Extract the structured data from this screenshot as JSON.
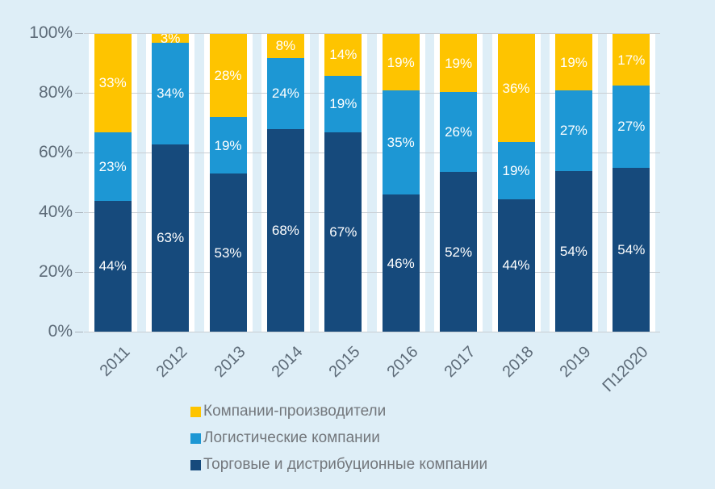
{
  "chart_data": {
    "type": "bar",
    "subtype": "stacked-100",
    "title": "",
    "categories": [
      "2011",
      "2012",
      "2013",
      "2014",
      "2015",
      "2016",
      "2017",
      "2018",
      "2019",
      "П12020"
    ],
    "series": [
      {
        "name": "Торговые и дистрибуционные компании",
        "color": "#164a7c",
        "values": [
          44,
          63,
          53,
          68,
          67,
          46,
          52,
          44,
          54,
          54
        ],
        "labels": [
          "44%",
          "63%",
          "53%",
          "68%",
          "67%",
          "46%",
          "52%",
          "44%",
          "54%",
          "54%"
        ]
      },
      {
        "name": "Логистические компании",
        "color": "#1d97d4",
        "values": [
          23,
          34,
          19,
          24,
          19,
          35,
          26,
          19,
          27,
          27
        ],
        "labels": [
          "23%",
          "34%",
          "19%",
          "24%",
          "19%",
          "35%",
          "26%",
          "19%",
          "27%",
          "27%"
        ]
      },
      {
        "name": "Компании-производители",
        "color": "#fec400",
        "values": [
          33,
          3,
          28,
          8,
          14,
          19,
          19,
          36,
          19,
          17
        ],
        "labels": [
          "33%",
          "3%",
          "28%",
          "8%",
          "14%",
          "19%",
          "19%",
          "36%",
          "19%",
          "17%"
        ]
      }
    ],
    "y_axis": {
      "min": 0,
      "max": 100,
      "tick_step": 20,
      "ticks_top_to_bottom": [
        "100%",
        "80%",
        "60%",
        "40%",
        "20%",
        "0%"
      ]
    },
    "grid": true,
    "legend_position": "bottom-left",
    "data_label_color": "#ffffff"
  },
  "legend": [
    {
      "label": "Компании-производители",
      "color": "#fec400"
    },
    {
      "label": "Логистические компании",
      "color": "#1d97d4"
    },
    {
      "label": "Торговые и дистрибуционные компании",
      "color": "#164a7c"
    }
  ],
  "colors": {
    "background": "#deeef7",
    "category_band": "#ffffff",
    "gridline": "#c9ced3",
    "tick": "#a8b2ba",
    "axis_text": "#5d6b78",
    "legend_text": "#73777c"
  }
}
